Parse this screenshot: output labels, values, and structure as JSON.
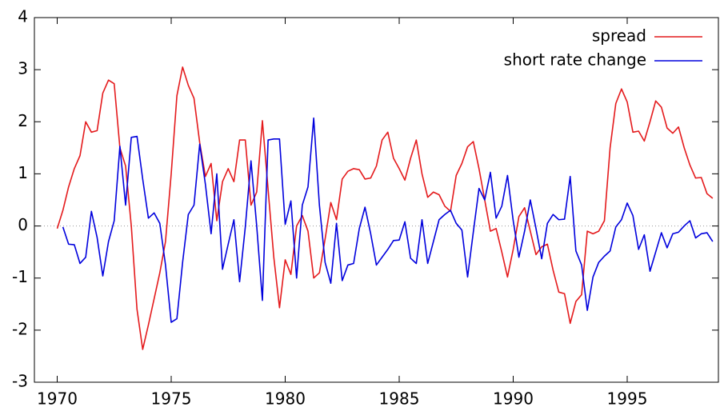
{
  "chart_data": {
    "type": "line",
    "x": [
      1970,
      1970.25,
      1970.5,
      1970.75,
      1971,
      1971.25,
      1971.5,
      1971.75,
      1972,
      1972.25,
      1972.5,
      1972.75,
      1973,
      1973.25,
      1973.5,
      1973.75,
      1974,
      1974.25,
      1974.5,
      1974.75,
      1975,
      1975.25,
      1975.5,
      1975.75,
      1976,
      1976.25,
      1976.5,
      1976.75,
      1977,
      1977.25,
      1977.5,
      1977.75,
      1978,
      1978.25,
      1978.5,
      1978.75,
      1979,
      1979.25,
      1979.5,
      1979.75,
      1980,
      1980.25,
      1980.5,
      1980.75,
      1981,
      1981.25,
      1981.5,
      1981.75,
      1982,
      1982.25,
      1982.5,
      1982.75,
      1983,
      1983.25,
      1983.5,
      1983.75,
      1984,
      1984.25,
      1984.5,
      1984.75,
      1985,
      1985.25,
      1985.5,
      1985.75,
      1986,
      1986.25,
      1986.5,
      1986.75,
      1987,
      1987.25,
      1987.5,
      1987.75,
      1988,
      1988.25,
      1988.5,
      1988.75,
      1989,
      1989.25,
      1989.5,
      1989.75,
      1990,
      1990.25,
      1990.5,
      1990.75,
      1991,
      1991.25,
      1991.5,
      1991.75,
      1992,
      1992.25,
      1992.5,
      1992.75,
      1993,
      1993.25,
      1993.5,
      1993.75,
      1994,
      1994.25,
      1994.5,
      1994.75,
      1995,
      1995.25,
      1995.5,
      1995.75,
      1996,
      1996.25,
      1996.5,
      1996.75,
      1997,
      1997.25,
      1997.5,
      1997.75,
      1998,
      1998.25,
      1998.5,
      1998.75
    ],
    "series": [
      {
        "name": "spread",
        "color": "#e41a1c",
        "values": [
          -0.05,
          0.3,
          0.75,
          1.1,
          1.35,
          2.0,
          1.8,
          1.83,
          2.55,
          2.8,
          2.73,
          1.5,
          1.15,
          0.0,
          -1.6,
          -2.37,
          -1.9,
          -1.4,
          -0.9,
          -0.3,
          1.0,
          2.5,
          3.05,
          2.7,
          2.45,
          1.6,
          0.95,
          1.2,
          0.1,
          0.85,
          1.1,
          0.85,
          1.65,
          1.65,
          0.4,
          0.65,
          2.02,
          0.7,
          -0.6,
          -1.57,
          -0.65,
          -0.93,
          0.0,
          0.2,
          -0.1,
          -1.0,
          -0.9,
          -0.25,
          0.45,
          0.12,
          0.9,
          1.05,
          1.1,
          1.08,
          0.9,
          0.92,
          1.15,
          1.65,
          1.8,
          1.3,
          1.1,
          0.88,
          1.3,
          1.65,
          1.0,
          0.55,
          0.65,
          0.6,
          0.38,
          0.28,
          0.97,
          1.2,
          1.52,
          1.62,
          1.1,
          0.5,
          -0.1,
          -0.05,
          -0.5,
          -0.98,
          -0.45,
          0.18,
          0.35,
          -0.1,
          -0.55,
          -0.4,
          -0.35,
          -0.85,
          -1.27,
          -1.3,
          -1.87,
          -1.45,
          -1.32,
          -0.1,
          -0.15,
          -0.1,
          0.1,
          1.5,
          2.35,
          2.63,
          2.38,
          1.8,
          1.82,
          1.63,
          2.0,
          2.4,
          2.28,
          1.88,
          1.78,
          1.9,
          1.5,
          1.17,
          0.92,
          0.93,
          0.62,
          0.53
        ]
      },
      {
        "name": "short rate change",
        "color": "#0000dd",
        "values": [
          null,
          -0.02,
          -0.35,
          -0.36,
          -0.72,
          -0.6,
          0.28,
          -0.22,
          -0.96,
          -0.3,
          0.1,
          1.53,
          0.4,
          1.7,
          1.72,
          0.9,
          0.15,
          0.25,
          0.05,
          -0.75,
          -1.85,
          -1.78,
          -0.7,
          0.22,
          0.4,
          1.57,
          0.8,
          -0.15,
          1.0,
          -0.83,
          -0.35,
          0.12,
          -1.07,
          -0.02,
          1.25,
          0.0,
          -1.43,
          1.65,
          1.67,
          1.67,
          0.03,
          0.48,
          -1.0,
          0.4,
          0.75,
          2.07,
          0.4,
          -0.7,
          -1.1,
          0.05,
          -1.05,
          -0.75,
          -0.72,
          -0.05,
          0.36,
          -0.15,
          -0.75,
          -0.6,
          -0.45,
          -0.28,
          -0.27,
          0.08,
          -0.62,
          -0.72,
          0.12,
          -0.72,
          -0.3,
          0.12,
          0.22,
          0.3,
          0.05,
          -0.08,
          -0.98,
          -0.12,
          0.72,
          0.5,
          1.03,
          0.15,
          0.38,
          0.97,
          0.1,
          -0.6,
          -0.1,
          0.5,
          -0.05,
          -0.63,
          0.05,
          0.22,
          0.12,
          0.13,
          0.95,
          -0.48,
          -0.75,
          -1.62,
          -0.98,
          -0.7,
          -0.58,
          -0.48,
          -0.02,
          0.12,
          0.44,
          0.2,
          -0.45,
          -0.17,
          -0.87,
          -0.5,
          -0.13,
          -0.42,
          -0.15,
          -0.12,
          0.0,
          0.1,
          -0.23,
          -0.15,
          -0.13,
          -0.3
        ]
      }
    ],
    "xlim": [
      1969,
      1999
    ],
    "xticks": [
      1970,
      1975,
      1980,
      1985,
      1990,
      1995
    ],
    "ylim": [
      -3,
      4
    ],
    "yticks": [
      -3,
      -2,
      -1,
      0,
      1,
      2,
      3,
      4
    ],
    "zero_line": true,
    "legend": "top-right"
  }
}
